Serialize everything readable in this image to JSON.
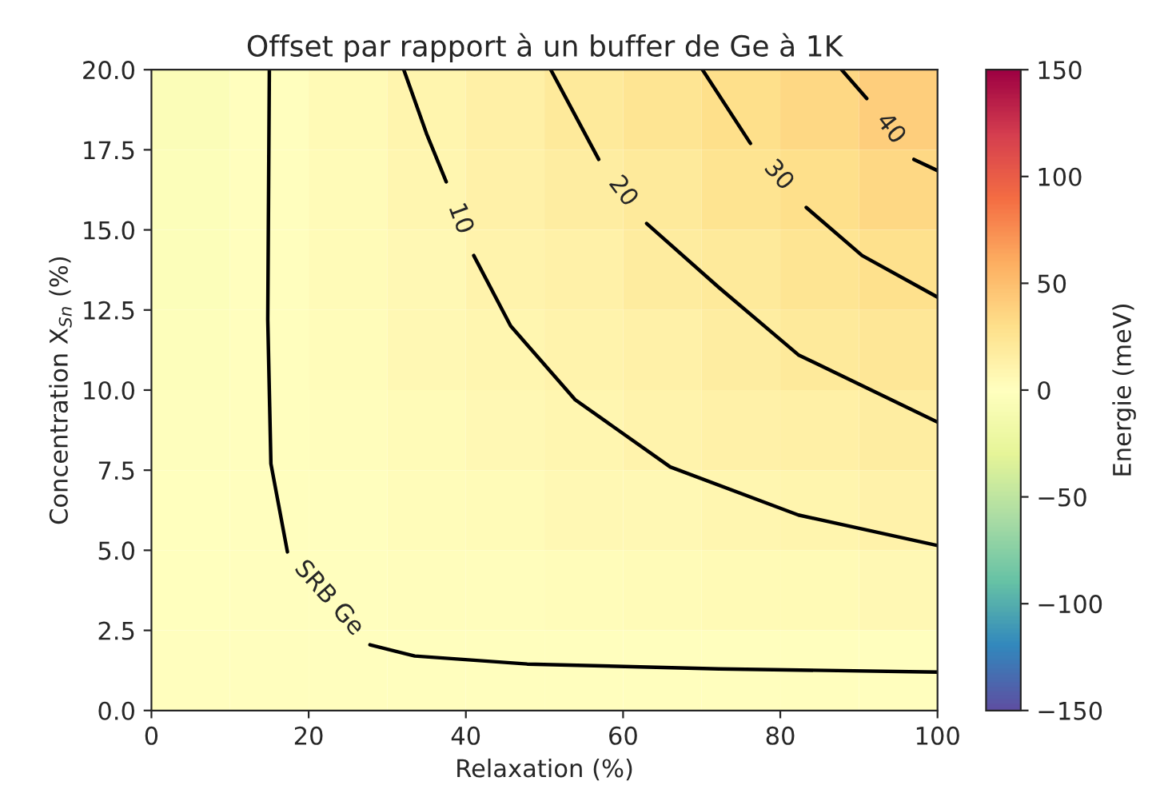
{
  "chart_data": {
    "type": "heatmap",
    "title": "Offset par rapport à un buffer de Ge à 1K",
    "xlabel": "Relaxation (%)",
    "ylabel": "Concentration X$_{Sn}$ (%)",
    "clabel": "Energie (meV)",
    "cells": [
      [
        -5,
        0,
        5,
        10,
        15,
        20,
        25,
        30,
        35,
        40
      ],
      [
        -4,
        0,
        4,
        9,
        13,
        17,
        21,
        26,
        30,
        34
      ],
      [
        -4,
        0,
        4,
        7,
        11,
        14,
        18,
        21,
        25,
        29
      ],
      [
        -3,
        0,
        3,
        6,
        9,
        11,
        14,
        17,
        20,
        23
      ],
      [
        -2,
        0,
        2,
        4,
        7,
        9,
        11,
        13,
        15,
        17
      ],
      [
        -1,
        0,
        1,
        3,
        4,
        6,
        7,
        9,
        10,
        12
      ],
      [
        -1,
        0,
        1,
        2,
        2,
        3,
        4,
        5,
        5,
        6
      ],
      [
        0,
        0,
        0,
        0,
        0,
        0,
        0,
        0,
        0,
        0
      ]
    ],
    "clim": [
      -150,
      150
    ],
    "cticks": [
      -150,
      -100,
      -50,
      0,
      50,
      100,
      150
    ],
    "xlim": [
      0,
      100
    ],
    "ylim": [
      0.0,
      20.0
    ],
    "xticks": [
      0,
      20,
      40,
      60,
      80,
      100
    ],
    "yticks": [
      {
        "value": 0,
        "label": "0.0"
      },
      2.5,
      {
        "value": 5,
        "label": "5.0"
      },
      7.5,
      {
        "value": 10,
        "label": "10.0"
      },
      12.5,
      {
        "value": 15,
        "label": "15.0"
      },
      17.5,
      {
        "value": 20,
        "label": "20.0"
      }
    ],
    "series": [
      {
        "type": "line",
        "name": "SRB Ge",
        "color": "#000000",
        "x": [
          15.0,
          14.8,
          15.2,
          17.3,
          20.9,
          27.8,
          33.5,
          47.8,
          72.2,
          100
        ],
        "values": [
          20,
          12.2,
          7.7,
          4.95,
          null,
          2.05,
          1.7,
          1.45,
          1.3,
          1.2
        ]
      },
      {
        "type": "line",
        "name": "10",
        "color": "#000000",
        "x": [
          32.1,
          35,
          37.5,
          39.6,
          41,
          45.7,
          53.9,
          66,
          82.3,
          100
        ],
        "values": [
          20,
          18,
          16.5,
          null,
          14.2,
          12,
          9.7,
          7.6,
          6.1,
          5.15
        ]
      },
      {
        "type": "line",
        "name": "20",
        "color": "#000000",
        "x": [
          50.8,
          56.9,
          60.4,
          63,
          72.2,
          82.3,
          100
        ],
        "values": [
          20,
          17.2,
          null,
          15.2,
          13.2,
          11.1,
          9.0
        ]
      },
      {
        "type": "line",
        "name": "30",
        "color": "#000000",
        "x": [
          70.1,
          76.2,
          79.9,
          83.3,
          90.4,
          100
        ],
        "values": [
          20,
          17.7,
          null,
          15.7,
          14.2,
          12.9
        ]
      },
      {
        "type": "line",
        "name": "40",
        "color": "#000000",
        "x": [
          87.8,
          91,
          93.7,
          97,
          100
        ],
        "values": [
          20,
          19.1,
          null,
          17.2,
          16.85
        ]
      }
    ],
    "grid": false,
    "legend": false
  }
}
